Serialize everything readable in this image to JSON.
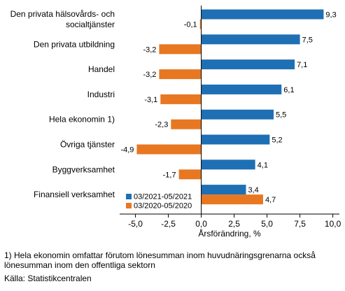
{
  "chart_data": {
    "type": "bar",
    "orientation": "horizontal",
    "categories": [
      [
        "Den privata hälsovårds- och",
        "socialtjänster"
      ],
      [
        "Den privata utbildning"
      ],
      [
        "Handel"
      ],
      [
        "Industri"
      ],
      [
        "Hela ekonomin 1)"
      ],
      [
        "Övriga tjänster"
      ],
      [
        "Byggverksamhet"
      ],
      [
        "Finansiell verksamhet"
      ]
    ],
    "series": [
      {
        "name": "03/2021-05/2021",
        "color": "#1f6fb5",
        "values": [
          9.3,
          7.5,
          7.1,
          6.1,
          5.5,
          5.2,
          4.1,
          3.4
        ],
        "labels": [
          "9,3",
          "7,5",
          "7,1",
          "6,1",
          "5,5",
          "5,2",
          "4,1",
          "3,4"
        ]
      },
      {
        "name": "03/2020-05/2020",
        "color": "#e87722",
        "values": [
          -0.1,
          -3.2,
          -3.2,
          -3.1,
          -2.3,
          -4.9,
          -1.7,
          4.7
        ],
        "labels": [
          "-0,1",
          "-3,2",
          "-3,2",
          "-3,1",
          "-2,3",
          "-4,9",
          "-1,7",
          "4,7"
        ]
      }
    ],
    "xlim": [
      -6.2,
      10.5
    ],
    "xticks": [
      -5.0,
      -2.5,
      0.0,
      2.5,
      5.0,
      7.5,
      10.0
    ],
    "xtick_labels": [
      "-5,0",
      "-2,5",
      "0,0",
      "2,5",
      "5,0",
      "7,5",
      "10,0"
    ],
    "xlabel": "Årsförändring, %",
    "legend_placement": "bottom-left-inside",
    "grid": false
  },
  "footnote": "1) Hela ekonomin omfattar förutom lönesumman inom huvudnäringsgrenarna också lönesumman inom den offentliga sektorn",
  "source": "Källa: Statistikcentralen"
}
